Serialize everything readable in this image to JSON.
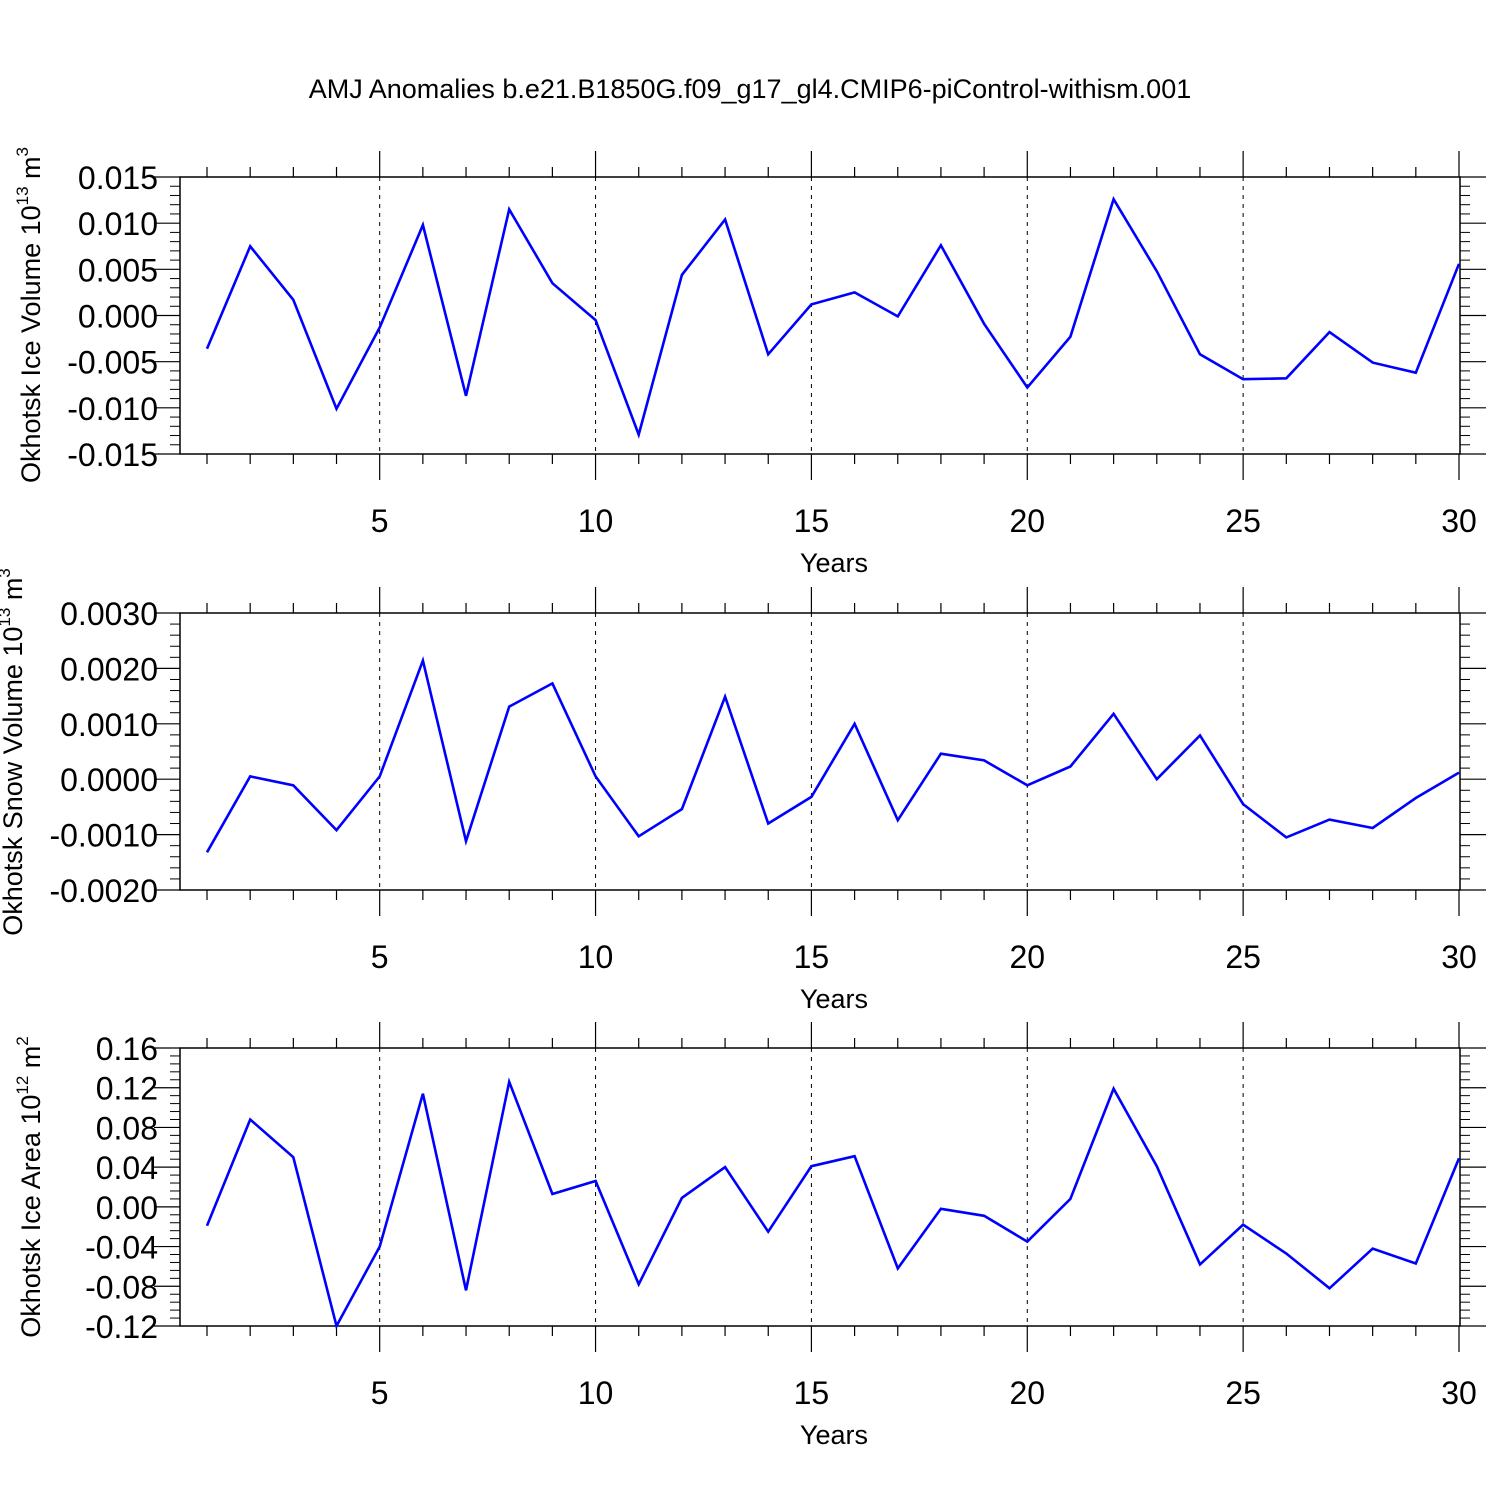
{
  "title": "AMJ Anomalies b.e21.B1850G.f09_g17_gl4.CMIP6-piControl-withism.001",
  "chart_data": [
    {
      "type": "line",
      "title": "AMJ Anomalies b.e21.B1850G.f09_g17_gl4.CMIP6-piControl-withism.001",
      "xlabel": "Years",
      "ylabel_main": "Okhotsk Ice Volume 10",
      "ylabel_exp": "13",
      "ylabel_unit": " m",
      "ylabel_unit_exp": "3",
      "xlim": [
        1,
        30
      ],
      "ylim": [
        -0.015,
        0.015
      ],
      "yticks": [
        -0.015,
        -0.01,
        -0.005,
        0.0,
        0.005,
        0.01,
        0.015
      ],
      "ytick_labels": [
        "-0.015",
        "-0.010",
        "-0.005",
        "0.000",
        "0.005",
        "0.010",
        "0.015"
      ],
      "xticks": [
        5,
        10,
        15,
        20,
        25,
        30
      ],
      "xtick_labels": [
        "5",
        "10",
        "15",
        "20",
        "25",
        "30"
      ],
      "color": "#0000ff",
      "series": [
        {
          "name": "Okhotsk Ice Volume",
          "x": [
            1,
            2,
            3,
            4,
            5,
            6,
            7,
            8,
            9,
            10,
            11,
            12,
            13,
            14,
            15,
            16,
            17,
            18,
            19,
            20,
            21,
            22,
            23,
            24,
            25,
            26,
            27,
            28,
            29,
            30
          ],
          "values": [
            -0.0036,
            0.0075,
            0.0017,
            -0.0101,
            -0.0013,
            0.0098,
            -0.0087,
            0.0115,
            0.0035,
            -0.0005,
            -0.0129,
            0.0044,
            0.0104,
            -0.0042,
            0.0012,
            0.0025,
            -0.0001,
            0.0076,
            -0.0009,
            -0.0078,
            -0.0023,
            0.0126,
            0.0048,
            -0.0042,
            -0.0069,
            -0.0068,
            -0.0018,
            -0.0051,
            -0.0062,
            0.0056
          ]
        }
      ]
    },
    {
      "type": "line",
      "xlabel": "Years",
      "ylabel_main": "Okhotsk Snow Volume 10",
      "ylabel_exp": "13",
      "ylabel_unit": " m",
      "ylabel_unit_exp": "3",
      "xlim": [
        1,
        30
      ],
      "ylim": [
        -0.002,
        0.003
      ],
      "yticks": [
        -0.002,
        -0.001,
        0.0,
        0.001,
        0.002,
        0.003
      ],
      "ytick_labels": [
        "-0.0020",
        "-0.0010",
        "0.0000",
        "0.0010",
        "0.0020",
        "0.0030"
      ],
      "xticks": [
        5,
        10,
        15,
        20,
        25,
        30
      ],
      "xtick_labels": [
        "5",
        "10",
        "15",
        "20",
        "25",
        "30"
      ],
      "color": "#0000ff",
      "series": [
        {
          "name": "Okhotsk Snow Volume",
          "x": [
            1,
            2,
            3,
            4,
            5,
            6,
            7,
            8,
            9,
            10,
            11,
            12,
            13,
            14,
            15,
            16,
            17,
            18,
            19,
            20,
            21,
            22,
            23,
            24,
            25,
            26,
            27,
            28,
            29,
            30
          ],
          "values": [
            -0.00132,
            5e-05,
            -0.00011,
            -0.00092,
            5e-05,
            0.00214,
            -0.00112,
            0.00131,
            0.00173,
            5e-05,
            -0.00103,
            -0.00054,
            0.00149,
            -0.0008,
            -0.00032,
            0.001,
            -0.00074,
            0.00046,
            0.00034,
            -0.00011,
            0.00023,
            0.00118,
            0.0,
            0.00079,
            -0.00045,
            -0.00105,
            -0.00073,
            -0.00088,
            -0.00034,
            0.00012
          ]
        }
      ]
    },
    {
      "type": "line",
      "xlabel": "Years",
      "ylabel_main": "Okhotsk Ice Area 10",
      "ylabel_exp": "12",
      "ylabel_unit": " m",
      "ylabel_unit_exp": "2",
      "xlim": [
        1,
        30
      ],
      "ylim": [
        -0.12,
        0.16
      ],
      "yticks": [
        -0.12,
        -0.08,
        -0.04,
        0.0,
        0.04,
        0.08,
        0.12,
        0.16
      ],
      "ytick_labels": [
        "-0.12",
        "-0.08",
        "-0.04",
        "0.00",
        "0.04",
        "0.08",
        "0.12",
        "0.16"
      ],
      "xticks": [
        5,
        10,
        15,
        20,
        25,
        30
      ],
      "xtick_labels": [
        "5",
        "10",
        "15",
        "20",
        "25",
        "30"
      ],
      "color": "#0000ff",
      "series": [
        {
          "name": "Okhotsk Ice Area",
          "x": [
            1,
            2,
            3,
            4,
            5,
            6,
            7,
            8,
            9,
            10,
            11,
            12,
            13,
            14,
            15,
            16,
            17,
            18,
            19,
            20,
            21,
            22,
            23,
            24,
            25,
            26,
            27,
            28,
            29,
            30
          ],
          "values": [
            -0.019,
            0.088,
            0.05,
            -0.12,
            -0.04,
            0.114,
            -0.084,
            0.126,
            0.013,
            0.026,
            -0.078,
            0.009,
            0.04,
            -0.025,
            0.041,
            0.051,
            -0.062,
            -0.002,
            -0.009,
            -0.035,
            0.008,
            0.119,
            0.041,
            -0.058,
            -0.018,
            -0.047,
            -0.082,
            -0.042,
            -0.057,
            0.049
          ]
        }
      ]
    }
  ]
}
